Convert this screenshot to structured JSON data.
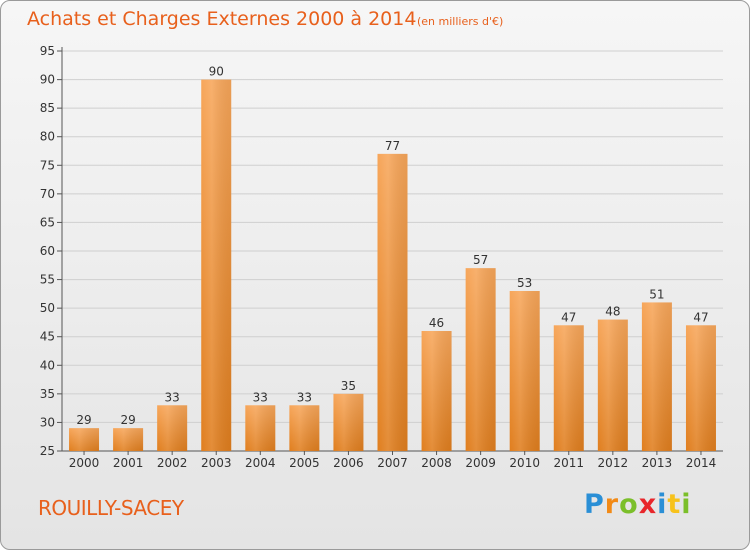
{
  "header": {
    "title": "Achats et Charges Externes 2000 à 2014",
    "subtitle": "(en milliers d'€)"
  },
  "footer": {
    "commune": "ROUILLY-SACEY",
    "logo_letters": [
      "P",
      "r",
      "o",
      "x",
      "i",
      "t",
      "i"
    ]
  },
  "colors": {
    "title": "#e8601c",
    "bar_top": "#f7a65a",
    "bar_bottom": "#e07e1e",
    "grid": "#cfcfcf"
  },
  "chart_data": {
    "type": "bar",
    "title": "Achats et Charges Externes 2000 à 2014",
    "subtitle": "(en milliers d'€)",
    "xlabel": "",
    "ylabel": "",
    "categories": [
      "2000",
      "2001",
      "2002",
      "2003",
      "2004",
      "2005",
      "2006",
      "2007",
      "2008",
      "2009",
      "2010",
      "2011",
      "2012",
      "2013",
      "2014"
    ],
    "values": [
      29,
      29,
      33,
      90,
      33,
      33,
      35,
      77,
      46,
      57,
      53,
      47,
      48,
      51,
      47
    ],
    "ylim": [
      25,
      95
    ],
    "yticks": [
      25,
      30,
      35,
      40,
      45,
      50,
      55,
      60,
      65,
      70,
      75,
      80,
      85,
      90,
      95
    ],
    "grid": true,
    "data_labels": true
  }
}
